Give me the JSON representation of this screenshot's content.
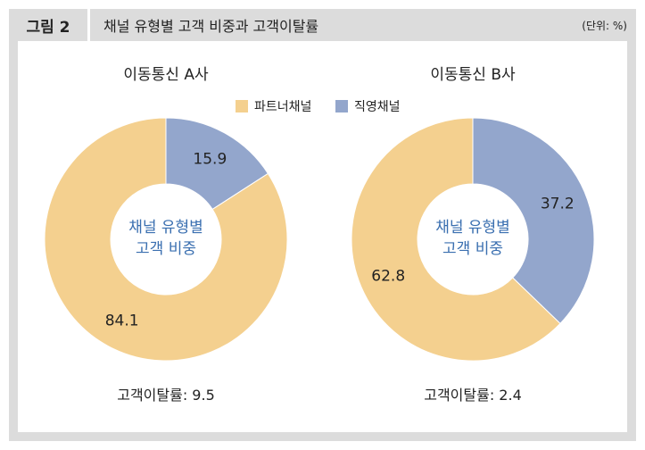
{
  "figure": {
    "label": "그림 2",
    "title": "채널 유형별 고객 비중과 고객이탈률",
    "unit": "(단위: %)"
  },
  "legend": [
    {
      "label": "파트너채널",
      "color": "#f4d08f"
    },
    {
      "label": "직영채널",
      "color": "#93a6cc"
    }
  ],
  "chart_data": [
    {
      "type": "pie",
      "title": "이동통신 A사",
      "center_label": [
        "채널 유형별",
        "고객 비중"
      ],
      "slices": [
        {
          "name": "직영채널",
          "value": 15.9,
          "label": "15.9"
        },
        {
          "name": "파트너채널",
          "value": 84.1,
          "label": "84.1"
        }
      ],
      "footer": "고객이탈률: 9.5",
      "churn_rate": 9.5
    },
    {
      "type": "pie",
      "title": "이동통신 B사",
      "center_label": [
        "채널 유형별",
        "고객 비중"
      ],
      "slices": [
        {
          "name": "직영채널",
          "value": 37.2,
          "label": "37.2"
        },
        {
          "name": "파트너채널",
          "value": 62.8,
          "label": "62.8"
        }
      ],
      "footer": "고객이탈률: 2.4",
      "churn_rate": 2.4
    }
  ],
  "colors": {
    "partner": "#f4d08f",
    "direct": "#93a6cc",
    "center_text": "#3a6fb0",
    "background": "#dcdcdc"
  }
}
